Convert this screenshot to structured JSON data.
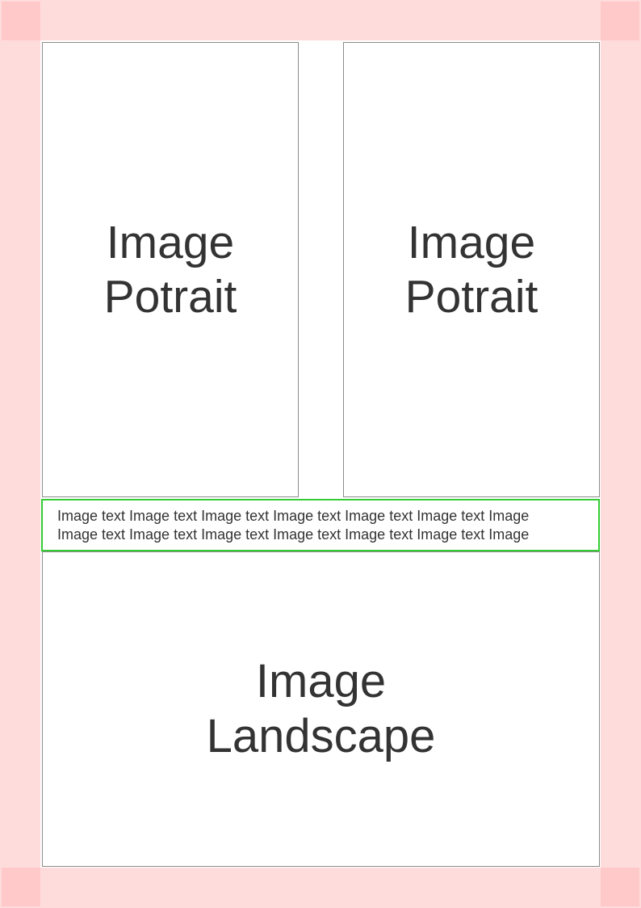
{
  "layout_frames": {
    "portrait_left": {
      "line1": "Image",
      "line2": "Potrait"
    },
    "portrait_right": {
      "line1": "Image",
      "line2": "Potrait"
    },
    "landscape": {
      "line1": "Image",
      "line2": "Landscape"
    }
  },
  "caption": {
    "line1": "Image text Image text Image text Image text Image text Image text Image",
    "line2": "Image text Image text Image text Image text Image text Image text Image"
  },
  "colors": {
    "margin_band": "#ffdcdc",
    "margin_corner": "#ffc9c9",
    "frame_border": "#8c8c8c",
    "caption_border": "#33cc33",
    "text": "#333333"
  }
}
